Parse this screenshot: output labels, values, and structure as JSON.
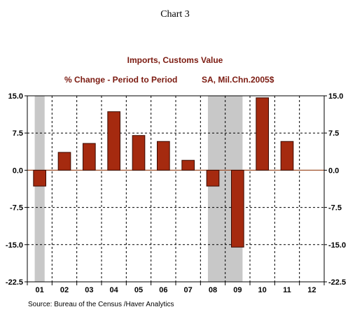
{
  "page_title": "Chart 3",
  "chart_data": {
    "type": "bar",
    "title": "Imports, Customs Value",
    "subtitle_left": "% Change - Period to Period",
    "subtitle_right": "SA, Mil.Chn.2005$",
    "categories": [
      "01",
      "02",
      "03",
      "04",
      "05",
      "06",
      "07",
      "08",
      "09",
      "10",
      "11",
      "12"
    ],
    "values": [
      -3.2,
      3.6,
      5.4,
      11.8,
      7.0,
      5.8,
      2.0,
      -3.2,
      -15.5,
      14.6,
      5.8,
      null
    ],
    "ylim": [
      -22.5,
      15.0
    ],
    "yticks": [
      15.0,
      7.5,
      0.0,
      -7.5,
      -15.0,
      -22.5
    ],
    "ytick_labels": [
      "15.0",
      "7.5",
      "0.0",
      "-7.5",
      "-15.0",
      "-22.5"
    ],
    "recession_shading": [
      [
        "01",
        "01"
      ],
      [
        "08",
        "09"
      ]
    ],
    "grid": true,
    "colors": {
      "bar_fill": "#a52a0f",
      "bar_stroke": "#3a0a00",
      "title": "#7b1a10",
      "shade": "#c8c8c8",
      "zero_line": "#a0522d",
      "frame": "#000000"
    },
    "source": "Source:  Bureau of the Census /Haver Analytics"
  }
}
